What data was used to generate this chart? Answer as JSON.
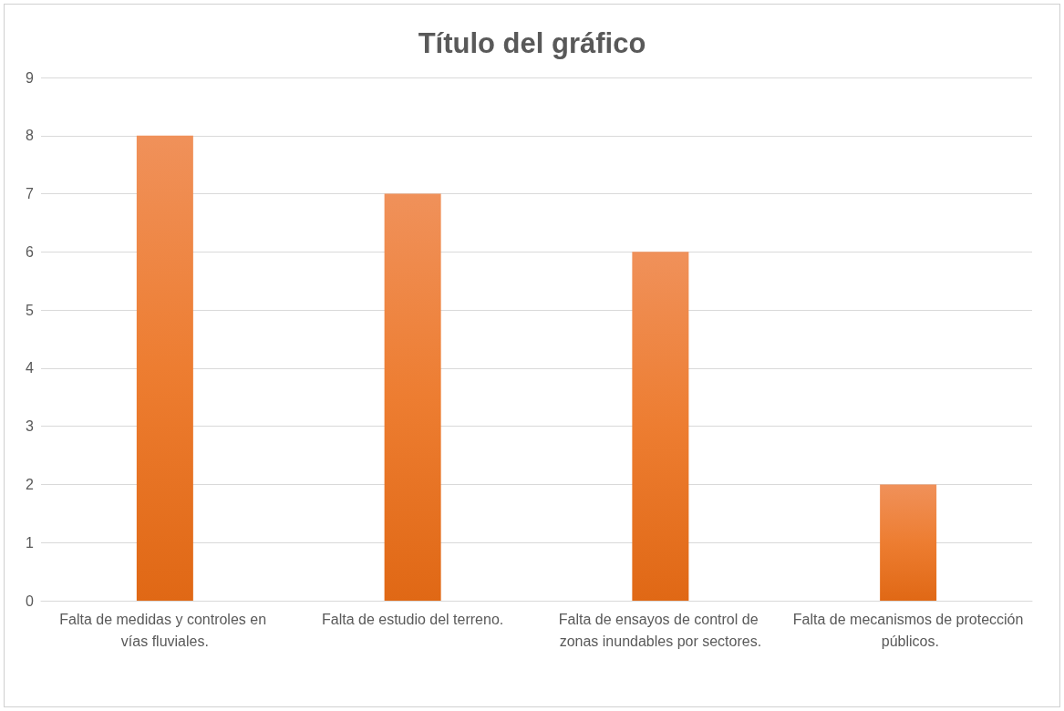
{
  "chart_data": {
    "type": "bar",
    "title": "Título del gráfico",
    "categories": [
      "Falta de medidas y controles en vías fluviales.",
      "Falta de estudio del terreno.",
      "Falta de ensayos de control de zonas inundables por sectores.",
      "Falta de mecanismos de protección públicos."
    ],
    "values": [
      8,
      7,
      6,
      2
    ],
    "color": "#ed7d31",
    "ylim": [
      0,
      9
    ],
    "yticks": [
      0,
      1,
      2,
      3,
      4,
      5,
      6,
      7,
      8,
      9
    ],
    "grid": "y"
  }
}
